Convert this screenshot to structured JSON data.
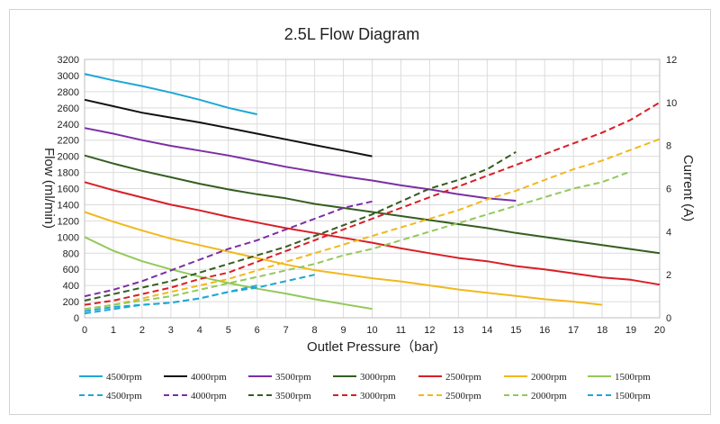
{
  "chart_data": {
    "type": "line",
    "title": "2.5L Flow Diagram",
    "xlabel": "Outlet Pressure（bar)",
    "ylabel_left": "Flow (ml/min)",
    "ylabel_right": "Current (A)",
    "xlim": [
      0,
      20
    ],
    "ylim_left": [
      0,
      3200
    ],
    "ylim_right": [
      0,
      12
    ],
    "x_ticks": [
      0,
      1,
      2,
      3,
      4,
      5,
      6,
      7,
      8,
      9,
      10,
      11,
      12,
      13,
      14,
      15,
      16,
      17,
      18,
      19,
      20
    ],
    "y_left_ticks": [
      0,
      200,
      400,
      600,
      800,
      1000,
      1200,
      1400,
      1600,
      1800,
      2000,
      2200,
      2400,
      2600,
      2800,
      3000,
      3200
    ],
    "y_right_ticks": [
      0,
      2,
      4,
      6,
      8,
      10,
      12
    ],
    "grid": true,
    "legend_position": "bottom",
    "flow_series": [
      {
        "name": "4500rpm",
        "color": "#1ea7d6",
        "x": [
          0,
          1,
          2,
          3,
          4,
          5,
          6
        ],
        "y": [
          3020,
          2940,
          2870,
          2790,
          2700,
          2600,
          2520
        ]
      },
      {
        "name": "4000rpm",
        "color": "#111111",
        "x": [
          0,
          1,
          2,
          3,
          4,
          5,
          6,
          7,
          8,
          9,
          10
        ],
        "y": [
          2700,
          2620,
          2540,
          2480,
          2420,
          2350,
          2280,
          2210,
          2140,
          2070,
          2000
        ]
      },
      {
        "name": "3500rpm",
        "color": "#7a2fa6",
        "x": [
          0,
          1,
          2,
          3,
          4,
          5,
          6,
          7,
          8,
          9,
          10,
          11,
          12,
          13,
          14,
          15
        ],
        "y": [
          2350,
          2280,
          2200,
          2130,
          2070,
          2010,
          1940,
          1870,
          1810,
          1750,
          1700,
          1640,
          1590,
          1530,
          1480,
          1450
        ]
      },
      {
        "name": "3000rpm",
        "color": "#355e20",
        "x": [
          0,
          1,
          2,
          3,
          4,
          5,
          6,
          7,
          8,
          9,
          10,
          11,
          12,
          13,
          14,
          15,
          16,
          17,
          18,
          19,
          20
        ],
        "y": [
          2010,
          1910,
          1820,
          1740,
          1660,
          1590,
          1530,
          1480,
          1410,
          1360,
          1310,
          1260,
          1210,
          1160,
          1110,
          1050,
          1000,
          950,
          900,
          850,
          800
        ]
      },
      {
        "name": "2500rpm",
        "color": "#d81f26",
        "x": [
          0,
          1,
          2,
          3,
          4,
          5,
          6,
          7,
          8,
          9,
          10,
          11,
          12,
          13,
          14,
          15,
          16,
          17,
          18,
          19,
          20
        ],
        "y": [
          1680,
          1580,
          1490,
          1400,
          1330,
          1250,
          1180,
          1110,
          1050,
          990,
          930,
          860,
          800,
          740,
          700,
          640,
          600,
          550,
          500,
          470,
          410
        ]
      },
      {
        "name": "2000rpm",
        "color": "#f2b81c",
        "x": [
          0,
          1,
          2,
          3,
          4,
          5,
          6,
          7,
          8,
          9,
          10,
          11,
          12,
          13,
          14,
          15,
          16,
          17,
          18
        ],
        "y": [
          1310,
          1190,
          1080,
          980,
          900,
          820,
          740,
          660,
          590,
          540,
          490,
          450,
          400,
          350,
          310,
          270,
          230,
          200,
          160
        ]
      },
      {
        "name": "1500rpm",
        "color": "#92c95a",
        "x": [
          0,
          1,
          2,
          3,
          4,
          5,
          6,
          7,
          8,
          9,
          10
        ],
        "y": [
          1000,
          830,
          700,
          600,
          510,
          430,
          360,
          300,
          230,
          170,
          110
        ]
      }
    ],
    "current_series": [
      {
        "name": "4500rpm",
        "color": "#1ea7d6",
        "x": [
          0,
          1,
          2,
          3,
          4,
          5,
          6,
          7,
          8
        ],
        "y": [
          0.2,
          0.4,
          0.6,
          0.7,
          0.9,
          1.2,
          1.4,
          1.7,
          2.0
        ]
      },
      {
        "name": "4000rpm",
        "color": "#7a2fa6",
        "x": [
          0,
          1,
          2,
          3,
          4,
          5,
          6,
          7,
          8,
          9,
          10
        ],
        "y": [
          1.0,
          1.3,
          1.7,
          2.2,
          2.7,
          3.2,
          3.6,
          4.1,
          4.6,
          5.1,
          5.4
        ]
      },
      {
        "name": "3500rpm",
        "color": "#355e20",
        "x": [
          0,
          1,
          2,
          3,
          4,
          5,
          6,
          7,
          8,
          9,
          10,
          11,
          12,
          13,
          14,
          15
        ],
        "y": [
          0.8,
          1.1,
          1.4,
          1.7,
          2.1,
          2.5,
          2.9,
          3.3,
          3.8,
          4.3,
          4.8,
          5.4,
          6.0,
          6.4,
          6.9,
          7.7
        ]
      },
      {
        "name": "3000rpm",
        "color": "#d81f26",
        "x": [
          0,
          1,
          2,
          3,
          4,
          5,
          6,
          7,
          8,
          9,
          10,
          11,
          12,
          13,
          14,
          15,
          16,
          17,
          18,
          19,
          20
        ],
        "y": [
          0.6,
          0.8,
          1.1,
          1.4,
          1.8,
          2.1,
          2.6,
          3.1,
          3.6,
          4.1,
          4.6,
          5.1,
          5.6,
          6.1,
          6.6,
          7.1,
          7.6,
          8.1,
          8.6,
          9.2,
          10.0
        ]
      },
      {
        "name": "2500rpm",
        "color": "#f2b81c",
        "x": [
          0,
          1,
          2,
          3,
          4,
          5,
          6,
          7,
          8,
          9,
          10,
          11,
          12,
          13,
          14,
          15,
          16,
          17,
          18,
          19,
          20
        ],
        "y": [
          0.4,
          0.6,
          0.9,
          1.2,
          1.5,
          1.8,
          2.2,
          2.6,
          3.0,
          3.4,
          3.8,
          4.2,
          4.6,
          5.0,
          5.5,
          5.9,
          6.4,
          6.9,
          7.3,
          7.8,
          8.3
        ]
      },
      {
        "name": "2000rpm",
        "color": "#92c95a",
        "x": [
          0,
          1,
          2,
          3,
          4,
          5,
          6,
          7,
          8,
          9,
          10,
          11,
          12,
          13,
          14,
          15,
          16,
          17,
          18,
          19
        ],
        "y": [
          0.4,
          0.6,
          0.8,
          1.0,
          1.3,
          1.6,
          1.9,
          2.2,
          2.5,
          2.9,
          3.2,
          3.6,
          4.0,
          4.4,
          4.8,
          5.2,
          5.6,
          6.0,
          6.3,
          6.8
        ]
      },
      {
        "name": "1500rpm",
        "color": "#1ea7d6",
        "x": [
          0,
          1,
          2,
          3,
          4,
          5,
          6
        ],
        "y": [
          0.3,
          0.5,
          0.6,
          0.7,
          0.9,
          1.2,
          1.5
        ]
      }
    ]
  }
}
